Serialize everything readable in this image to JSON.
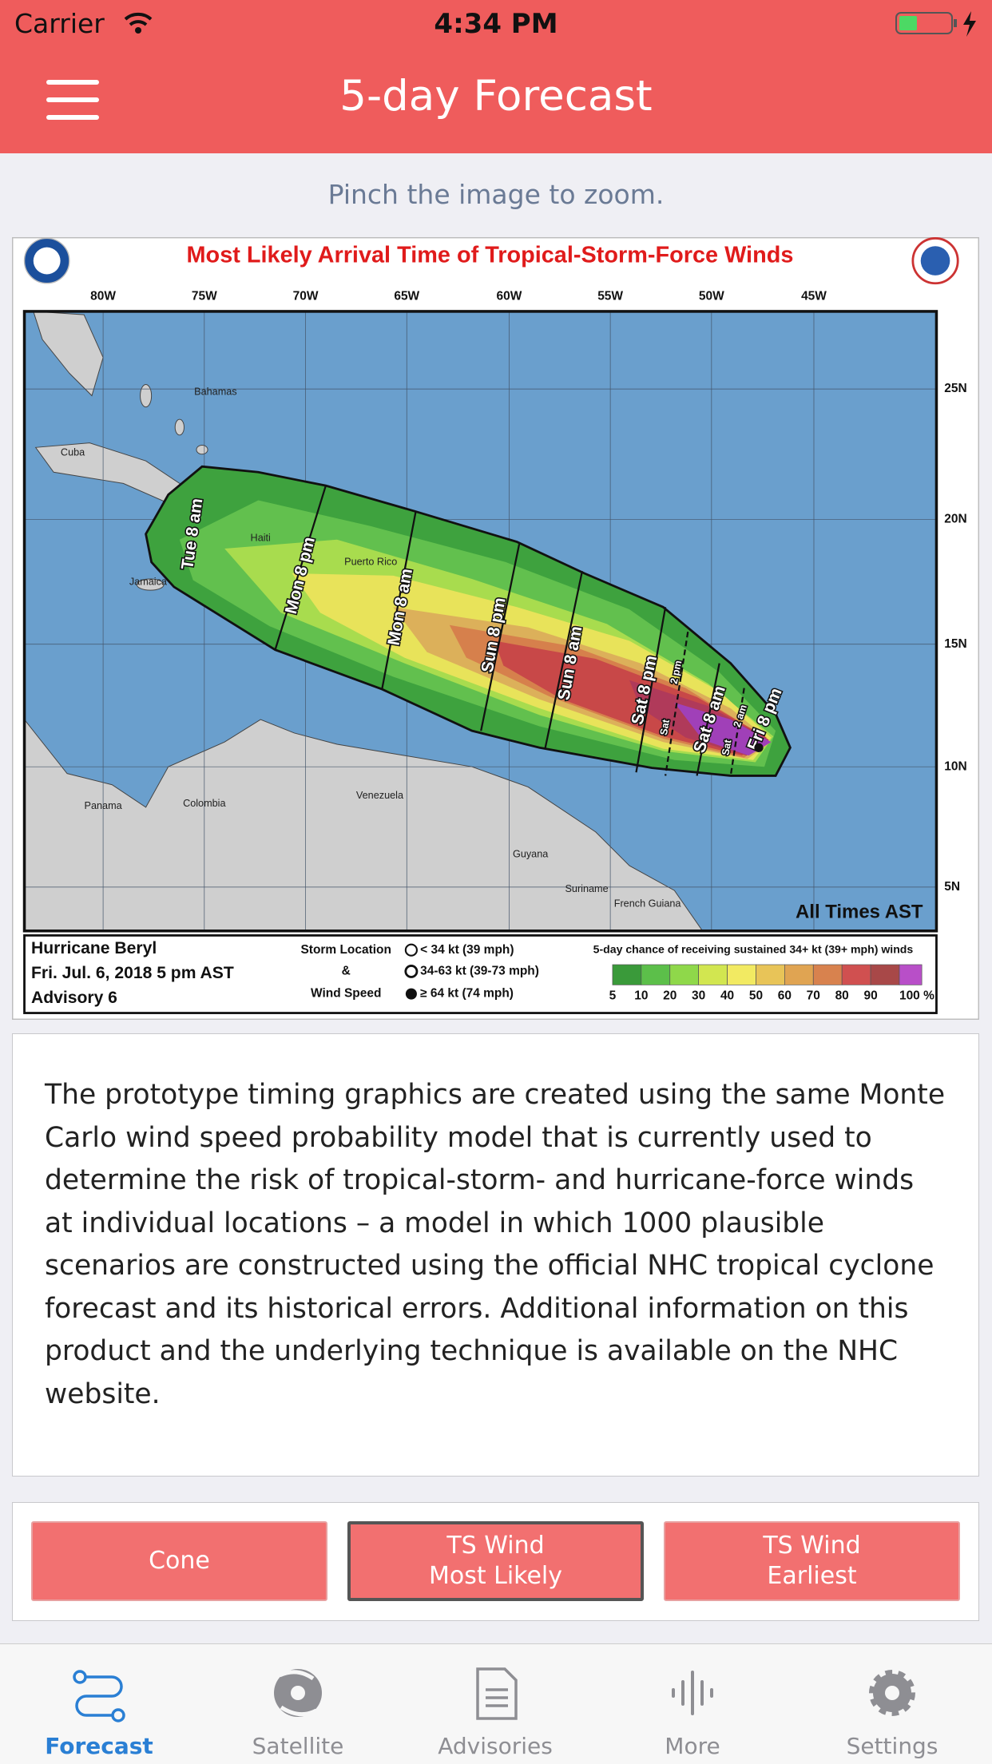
{
  "status_bar": {
    "carrier": "Carrier",
    "time": "4:34 PM"
  },
  "header": {
    "title": "5-day Forecast"
  },
  "hint": "Pinch the image to zoom.",
  "map": {
    "title": "Most Likely Arrival Time of Tropical-Storm-Force Winds",
    "longitudes": [
      "80W",
      "75W",
      "70W",
      "65W",
      "60W",
      "55W",
      "50W",
      "45W"
    ],
    "latitudes": [
      "25N",
      "20N",
      "15N",
      "10N",
      "5N"
    ],
    "places": [
      "Bahamas",
      "Cuba",
      "Haiti",
      "Puerto Rico",
      "Jamaica",
      "Colombia",
      "Venezuela",
      "Guyana",
      "Suriname",
      "French Guiana",
      "Panama"
    ],
    "time_labels": [
      "Tue 8 am",
      "Mon 8 pm",
      "Mon 8 am",
      "Sun 8 pm",
      "Sun 8 am",
      "Sat 8 pm",
      "Sat",
      "2 pm",
      "Sat 8 am",
      "Sat",
      "2 am",
      "Fri 8 pm"
    ],
    "all_times": "All Times AST",
    "legend": {
      "storm": "Hurricane Beryl",
      "date": "Fri. Jul. 6, 2018  5 pm AST",
      "advisory": "Advisory 6",
      "storm_location": "Storm Location",
      "amp": "&",
      "wind_speed": "Wind Speed",
      "wind_classes": [
        "< 34 kt (39 mph)",
        "34-63 kt (39-73 mph)",
        "≥ 64 kt (74 mph)"
      ],
      "chance_title": "5-day chance of receiving sustained 34+ kt (39+ mph) winds",
      "scale_labels": [
        "5",
        "10",
        "20",
        "30",
        "40",
        "50",
        "60",
        "70",
        "80",
        "90",
        "100 %"
      ]
    }
  },
  "description": "The prototype timing graphics are created using the same Monte Carlo wind speed probability model that is currently used to determine the risk of tropical-storm- and hurricane-force winds at individual locations – a model in which 1000 plausible scenarios are constructed using the official NHC tropical cyclone forecast and its historical errors. Additional information on this product and the underlying technique is available on the NHC website.",
  "buttons": [
    [
      "Cone"
    ],
    [
      "TS Wind",
      "Most Likely"
    ],
    [
      "TS Wind",
      "Earliest"
    ]
  ],
  "tabs": [
    "Forecast",
    "Satellite",
    "Advisories",
    "More",
    "Settings"
  ]
}
